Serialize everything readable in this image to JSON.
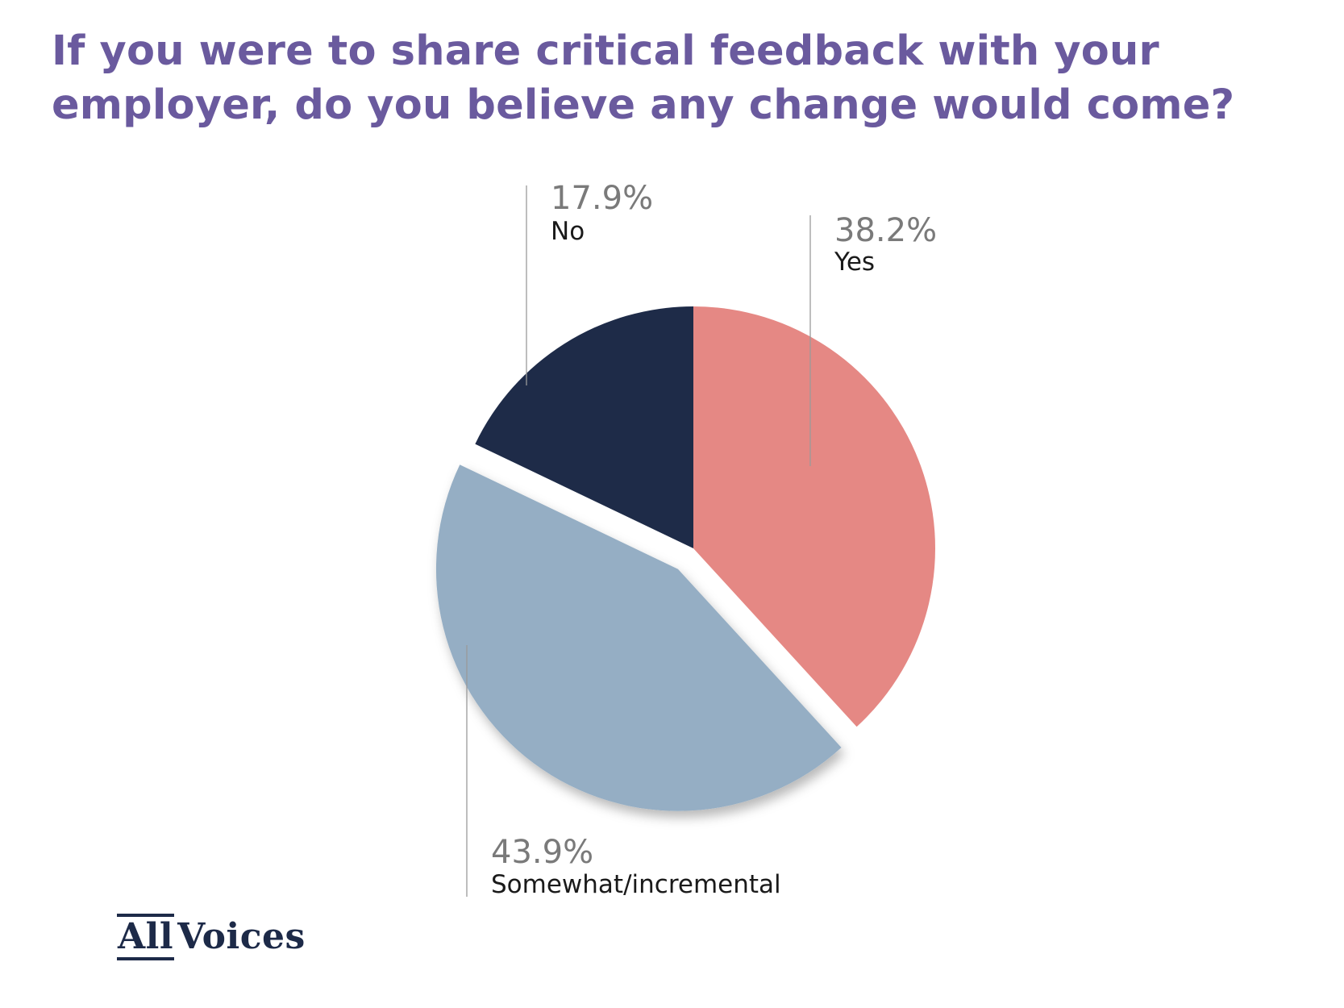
{
  "chart_data": {
    "type": "pie",
    "title": "If you were to share critical feedback with your employer, do you believe any change would come?",
    "slices": [
      {
        "label": "Yes",
        "value": 38.2,
        "display": "38.2%",
        "color": "#e58884"
      },
      {
        "label": "Somewhat/incremental",
        "value": 43.9,
        "display": "43.9%",
        "color": "#95aec4"
      },
      {
        "label": "No",
        "value": 17.9,
        "display": "17.9%",
        "color": "#1e2b48"
      }
    ],
    "exploded_slice": "Somewhat/incremental",
    "title_color": "#6a5a9e"
  },
  "logo": {
    "part1": "All",
    "part2": "Voices",
    "color": "#1d2a48"
  }
}
